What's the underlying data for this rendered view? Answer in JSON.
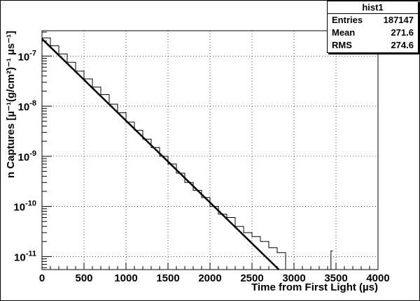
{
  "chart_data": {
    "type": "line",
    "title": "",
    "xlabel": "Time from First Light (µs)",
    "ylabel": "n Captures [µ⁻¹(g/cm²)⁻¹ µs⁻¹]",
    "xlim": [
      0,
      4000
    ],
    "ylim": [
      5.5e-12,
      3.2e-07
    ],
    "yscale": "log",
    "grid": true,
    "x_ticks": [
      "0",
      "500",
      "1000",
      "1500",
      "2000",
      "2500",
      "3000",
      "3500",
      "4000"
    ],
    "y_ticks": [
      {
        "value": 1e-07,
        "base": "10",
        "exp": "-7"
      },
      {
        "value": 1e-08,
        "base": "10",
        "exp": "-8"
      },
      {
        "value": 1e-09,
        "base": "10",
        "exp": "-9"
      },
      {
        "value": 1e-10,
        "base": "10",
        "exp": "-10"
      },
      {
        "value": 1e-11,
        "base": "10",
        "exp": "-11"
      }
    ],
    "fit": {
      "name": "fit",
      "x": [
        0,
        2820
      ],
      "values": [
        2.2e-07,
        5.5e-12
      ]
    },
    "histogram": {
      "name": "hist1",
      "x": [
        0,
        100,
        200,
        300,
        400,
        500,
        600,
        700,
        800,
        900,
        1000,
        1100,
        1200,
        1300,
        1400,
        1500,
        1600,
        1700,
        1800,
        1900,
        2000,
        2100,
        2200,
        2300,
        2400,
        2500,
        2600,
        2700,
        2800,
        2900,
        3000,
        3440
      ],
      "values": [
        2.3e-07,
        1.6e-07,
        1.1e-07,
        7.5e-08,
        5e-08,
        3.5e-08,
        2.4e-08,
        1.7e-08,
        1.1e-08,
        7.4e-09,
        4.8e-09,
        3.3e-09,
        2.2e-09,
        1.5e-09,
        1e-09,
        7e-10,
        4.6e-10,
        3e-10,
        2.1e-10,
        1.5e-10,
        1e-10,
        7e-11,
        6e-11,
        4e-11,
        3e-11,
        2.5e-11,
        2e-11,
        1.5e-11,
        1.2e-11,
        0,
        0,
        1.3e-11
      ]
    }
  },
  "stats": {
    "title": "hist1",
    "rows": [
      {
        "label": "Entries",
        "value": "187147"
      },
      {
        "label": "Mean",
        "value": "271.6"
      },
      {
        "label": "RMS",
        "value": "274.6"
      }
    ]
  }
}
